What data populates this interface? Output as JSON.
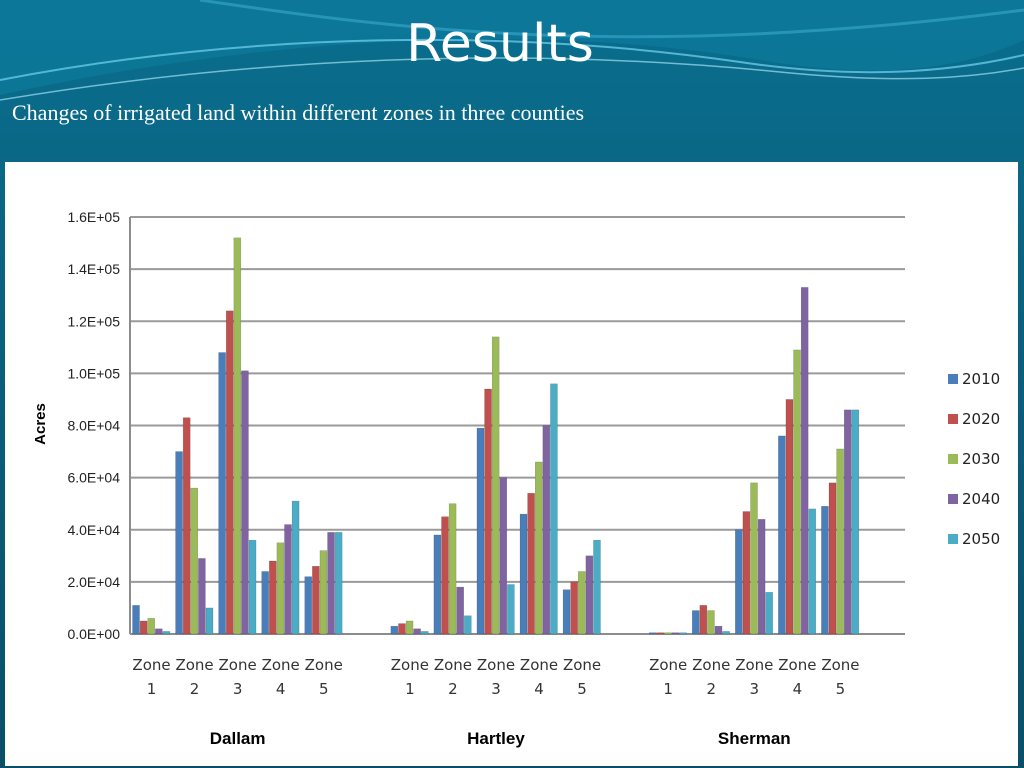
{
  "slide": {
    "title": "Results",
    "subtitle": "Changes of irrigated land within different zones in three counties"
  },
  "colors": {
    "background": "#0b5d78",
    "series": [
      "#4a7ebb",
      "#c0504d",
      "#9bbb59",
      "#8064a2",
      "#4bacc6"
    ]
  },
  "chart_data": {
    "type": "bar",
    "ylabel": "Acres",
    "ylim": [
      0,
      160000
    ],
    "yticks": [
      "0.0E+00",
      "2.0E+04",
      "4.0E+04",
      "6.0E+04",
      "8.0E+04",
      "1.0E+05",
      "1.2E+05",
      "1.4E+05",
      "1.6E+05"
    ],
    "grid": true,
    "legend_position": "right",
    "groups": [
      {
        "name": "Dallam",
        "categories": [
          [
            "Zone",
            "1"
          ],
          [
            "Zone",
            "2"
          ],
          [
            "Zone",
            "3"
          ],
          [
            "Zone",
            "4"
          ],
          [
            "Zone",
            "5"
          ]
        ]
      },
      {
        "name": "Hartley",
        "categories": [
          [
            "Zone",
            "1"
          ],
          [
            "Zone",
            "2"
          ],
          [
            "Zone",
            "3"
          ],
          [
            "Zone",
            "4"
          ],
          [
            "Zone",
            "5"
          ]
        ]
      },
      {
        "name": "Sherman",
        "categories": [
          [
            "Zone",
            "1"
          ],
          [
            "Zone",
            "2"
          ],
          [
            "Zone",
            "3"
          ],
          [
            "Zone",
            "4"
          ],
          [
            "Zone",
            "5"
          ]
        ]
      }
    ],
    "series": [
      {
        "name": "2010",
        "values": [
          11000,
          70000,
          108000,
          24000,
          22000,
          3000,
          38000,
          79000,
          46000,
          17000,
          500,
          9000,
          40000,
          76000,
          49000
        ]
      },
      {
        "name": "2020",
        "values": [
          5000,
          83000,
          124000,
          28000,
          26000,
          4000,
          45000,
          94000,
          54000,
          20000,
          500,
          11000,
          47000,
          90000,
          58000
        ]
      },
      {
        "name": "2030",
        "values": [
          6000,
          56000,
          152000,
          35000,
          32000,
          5000,
          50000,
          114000,
          66000,
          24000,
          500,
          9000,
          58000,
          109000,
          71000
        ]
      },
      {
        "name": "2040",
        "values": [
          2000,
          29000,
          101000,
          42000,
          39000,
          2000,
          18000,
          60000,
          80000,
          30000,
          500,
          3000,
          44000,
          133000,
          86000
        ]
      },
      {
        "name": "2050",
        "values": [
          1000,
          10000,
          36000,
          51000,
          39000,
          1000,
          7000,
          19000,
          96000,
          36000,
          500,
          1000,
          16000,
          48000,
          86000
        ]
      }
    ]
  }
}
